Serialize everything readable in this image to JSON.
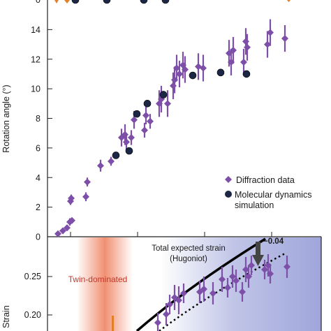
{
  "colors": {
    "diffraction": "#7d4fa8",
    "md": "#1b2745",
    "orange": "#e2802a",
    "twin_band": "#f08a6a",
    "blue_band": "#8e96d4",
    "hugoniot": "#000000"
  },
  "chart_data": [
    {
      "type": "scatter",
      "ylabel": "Rotation angle (°)",
      "ylim": [
        0,
        16
      ],
      "yticks": [
        0,
        2,
        4,
        6,
        8,
        10,
        12,
        14
      ],
      "ytick_labels": [
        "0",
        "2",
        "4",
        "6",
        "8",
        "10",
        "12",
        "14"
      ],
      "xlim": [
        0,
        10
      ],
      "grid": false,
      "legend_position": "lower-right",
      "legend": [
        {
          "label": "Diffraction data",
          "marker": "diamond"
        },
        {
          "label": "Molecular dynamics simulation",
          "lines": [
            "Molecular dynamics",
            "simulation"
          ],
          "marker": "circle"
        }
      ],
      "series": [
        {
          "name": "Diffraction data",
          "marker": "diamond",
          "points": [
            {
              "x": 0.5,
              "y": 0.2,
              "err": 0.15
            },
            {
              "x": 0.8,
              "y": 0.4,
              "err": 0.2
            },
            {
              "x": 1.1,
              "y": 0.6,
              "err": 0.2
            },
            {
              "x": 1.3,
              "y": 1.0,
              "err": 0.25
            },
            {
              "x": 1.5,
              "y": 1.1,
              "err": 0.2
            },
            {
              "x": 1.6,
              "y": 2.4,
              "err": 0.25
            },
            {
              "x": 1.7,
              "y": 2.6,
              "err": 0.25
            },
            {
              "x": 3.0,
              "y": 2.7,
              "err": 0.3
            },
            {
              "x": 3.1,
              "y": 3.7,
              "err": 0.3
            },
            {
              "x": 5.0,
              "y": 4.8,
              "err": 0.4
            },
            {
              "x": 6.0,
              "y": 5.1,
              "err": 0.3
            },
            {
              "x": 7.0,
              "y": 6.7,
              "err": 0.6
            },
            {
              "x": 7.3,
              "y": 6.9,
              "err": 0.7
            },
            {
              "x": 7.5,
              "y": 6.4,
              "err": 0.6
            },
            {
              "x": 8.0,
              "y": 6.7,
              "err": 0.5
            },
            {
              "x": 8.5,
              "y": 7.9,
              "err": 0.6
            },
            {
              "x": 8.8,
              "y": 7.2,
              "err": 0.5
            },
            {
              "x": 9.0,
              "y": 8.2,
              "err": 0.6
            },
            {
              "x": 9.2,
              "y": 7.8,
              "err": 0.5
            }
          ]
        },
        {
          "name": "Molecular dynamics simulation",
          "marker": "circle",
          "points": [
            {
              "x": 2.3,
              "y": 16.0
            },
            {
              "x": 5.0,
              "y": 16.0
            },
            {
              "x": 6.5,
              "y": 16.0
            },
            {
              "x": 7.2,
              "y": 5.5
            },
            {
              "x": 7.8,
              "y": 5.8
            },
            {
              "x": 8.6,
              "y": 8.3
            },
            {
              "x": 9.4,
              "y": 9.0
            }
          ]
        }
      ]
    },
    {
      "type": "scatter",
      "ylabel": "Strain",
      "yticks": [
        0.2,
        0.25
      ],
      "ytick_labels": [
        "0.20",
        "0.25"
      ],
      "annotations": {
        "hugoniot": [
          "Total expected strain",
          "(Hugoniot)"
        ],
        "offset": "−0.04",
        "twin": "Twin-dominated"
      }
    }
  ],
  "top_axis": {
    "tick_labels": [
      "0"
    ]
  }
}
